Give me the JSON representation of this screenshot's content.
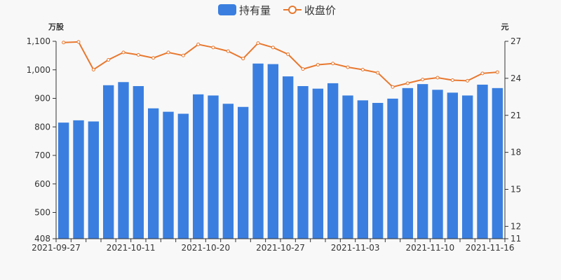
{
  "chart_data": {
    "type": "bar-line",
    "legend": [
      {
        "name": "持有量",
        "kind": "bar",
        "color": "#3a7fe0"
      },
      {
        "name": "收盘价",
        "kind": "line",
        "color": "#e8782e"
      }
    ],
    "left_axis": {
      "unit": "万股",
      "min": 408,
      "max": 1100,
      "ticks": [
        "408",
        "500",
        "600",
        "700",
        "800",
        "900",
        "1,000",
        "1,100"
      ],
      "tick_values": [
        408,
        500,
        600,
        700,
        800,
        900,
        1000,
        1100
      ]
    },
    "right_axis": {
      "unit": "元",
      "min": 11,
      "max": 27,
      "ticks": [
        "11",
        "12",
        "15",
        "18",
        "21",
        "24",
        "27"
      ],
      "tick_values": [
        11,
        12,
        15,
        18,
        21,
        24,
        27
      ]
    },
    "x_labels": [
      {
        "index": 0,
        "text": "2021-09-27"
      },
      {
        "index": 5,
        "text": "2021-10-11"
      },
      {
        "index": 10,
        "text": "2021-10-20"
      },
      {
        "index": 15,
        "text": "2021-10-27"
      },
      {
        "index": 20,
        "text": "2021-11-03"
      },
      {
        "index": 25,
        "text": "2021-11-10"
      },
      {
        "index": 29,
        "text": "2021-11-16"
      }
    ],
    "holdings": [
      815,
      823,
      819,
      946,
      957,
      943,
      865,
      853,
      846,
      914,
      910,
      881,
      870,
      1022,
      1020,
      977,
      943,
      934,
      953,
      910,
      893,
      884,
      899,
      936,
      950,
      930,
      920,
      910,
      948,
      936
    ],
    "close_price": [
      26.9,
      26.95,
      24.7,
      25.5,
      26.1,
      25.9,
      25.65,
      26.1,
      25.85,
      26.75,
      26.5,
      26.2,
      25.6,
      26.85,
      26.5,
      25.95,
      24.75,
      25.1,
      25.2,
      24.9,
      24.7,
      24.45,
      23.3,
      23.6,
      23.9,
      24.05,
      23.85,
      23.8,
      24.4,
      24.5
    ]
  }
}
